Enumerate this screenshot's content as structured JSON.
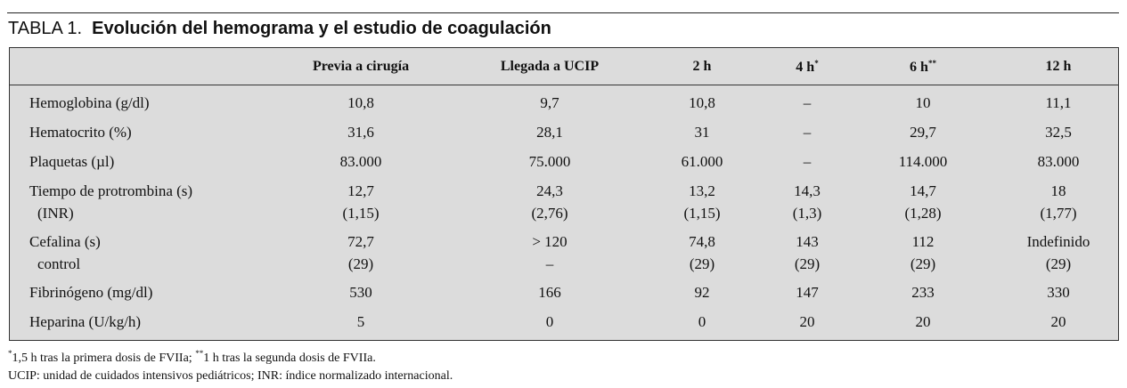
{
  "title": {
    "number": "TABLA 1.",
    "text": "Evolución del hemograma y el estudio de coagulación"
  },
  "table": {
    "header": [
      {
        "text": "Previa a cirugía"
      },
      {
        "text": "Llegada a UCIP"
      },
      {
        "text": "2 h"
      },
      {
        "text": "4 h",
        "sup": "*"
      },
      {
        "text": "6 h",
        "sup": "**"
      },
      {
        "text": "12 h"
      }
    ],
    "rows": [
      {
        "label": "Hemoglobina (g/dl)",
        "values": [
          "10,8",
          "9,7",
          "10,8",
          "–",
          "10",
          "11,1"
        ]
      },
      {
        "label": "Hematocrito (%)",
        "values": [
          "31,6",
          "28,1",
          "31",
          "–",
          "29,7",
          "32,5"
        ]
      },
      {
        "label": "Plaquetas (µl)",
        "values": [
          "83.000",
          "75.000",
          "61.000",
          "–",
          "114.000",
          "83.000"
        ]
      },
      {
        "label": "Tiempo de protrombina (s)",
        "values": [
          "12,7",
          "24,3",
          "13,2",
          "14,3",
          "14,7",
          "18"
        ],
        "sub": {
          "label": "(INR)",
          "values": [
            "(1,15)",
            "(2,76)",
            "(1,15)",
            "(1,3)",
            "(1,28)",
            "(1,77)"
          ]
        }
      },
      {
        "label": "Cefalina (s)",
        "values": [
          "72,7",
          "> 120",
          "74,8",
          "143",
          "112",
          "Indefinido"
        ],
        "sub": {
          "label": "control",
          "values": [
            "(29)",
            "–",
            "(29)",
            "(29)",
            "(29)",
            "(29)"
          ]
        }
      },
      {
        "label": "Fibrinógeno (mg/dl)",
        "values": [
          "530",
          "166",
          "92",
          "147",
          "233",
          "330"
        ]
      },
      {
        "label": "Heparina (U/kg/h)",
        "values": [
          "5",
          "0",
          "0",
          "20",
          "20",
          "20"
        ]
      }
    ]
  },
  "footnotes": [
    {
      "sup": "*",
      "text": "1,5 h tras la primera dosis de FVIIa; ",
      "sup2": "**",
      "text2": "1 h tras la segunda dosis de FVIIa."
    },
    {
      "text": "UCIP: unidad de cuidados intensivos pediátricos; INR: índice normalizado internacional."
    }
  ]
}
